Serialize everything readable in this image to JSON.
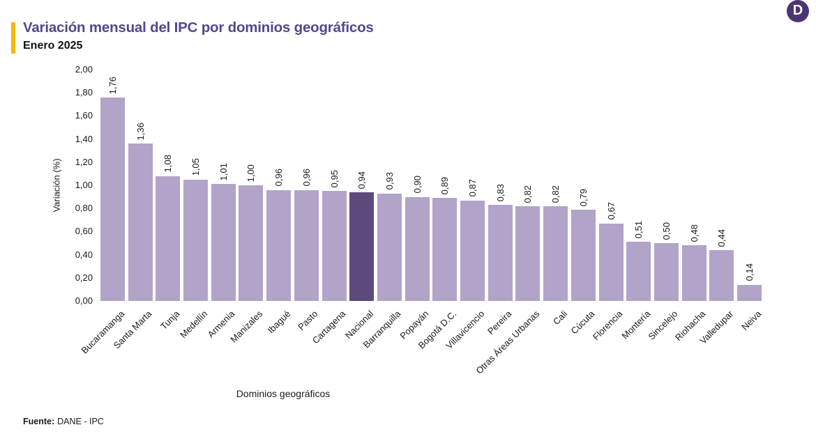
{
  "logo": {
    "letter": "D",
    "background": "#4d3573",
    "text_color": "#ffffff"
  },
  "header": {
    "title": "Variación mensual del IPC por dominios geográficos",
    "subtitle": "Enero 2025",
    "accent_color": "#f6b709",
    "title_color": "#57468b",
    "subtitle_color": "#111111"
  },
  "chart_data": {
    "type": "bar",
    "title": "Variación mensual del IPC por dominios geográficos",
    "subtitle": "Enero 2025",
    "xlabel": "Dominios geográficos",
    "ylabel": "Variación (%)",
    "ylim": [
      0,
      2.0
    ],
    "ytick_step": 0.2,
    "grid": false,
    "legend": false,
    "bar_color": "#b2a3c9",
    "highlight_color": "#5c4a7d",
    "highlight_category": "Nacional",
    "ytick_labels": [
      "2,00",
      "1,80",
      "1,60",
      "1,40",
      "1,20",
      "1,00",
      "0,80",
      "0,60",
      "0,40",
      "0,20",
      "0,00"
    ],
    "ytick_values": [
      2.0,
      1.8,
      1.6,
      1.4,
      1.2,
      1.0,
      0.8,
      0.6,
      0.4,
      0.2,
      0.0
    ],
    "categories": [
      "Bucaramanga",
      "Santa Marta",
      "Tunja",
      "Medellín",
      "Armenia",
      "Manizales",
      "Ibagué",
      "Pasto",
      "Cartagena",
      "Nacional",
      "Barranquilla",
      "Popayán",
      "Bogotá D.C.",
      "Villavicencio",
      "Pereira",
      "Otras Áreas Urbanas",
      "Cali",
      "Cúcuta",
      "Florencia",
      "Montería",
      "Sincelejo",
      "Riohacha",
      "Valledupar",
      "Neiva"
    ],
    "values": [
      1.76,
      1.36,
      1.08,
      1.05,
      1.01,
      1.0,
      0.96,
      0.96,
      0.95,
      0.94,
      0.93,
      0.9,
      0.89,
      0.87,
      0.83,
      0.82,
      0.82,
      0.79,
      0.67,
      0.51,
      0.5,
      0.48,
      0.44,
      0.14
    ],
    "value_labels": [
      "1,76",
      "1,36",
      "1,08",
      "1,05",
      "1,01",
      "1,00",
      "0,96",
      "0,96",
      "0,95",
      "0,94",
      "0,93",
      "0,90",
      "0,89",
      "0,87",
      "0,83",
      "0,82",
      "0,82",
      "0,79",
      "0,67",
      "0,51",
      "0,50",
      "0,48",
      "0,44",
      "0,14"
    ]
  },
  "footer": {
    "source_label": "Fuente:",
    "source_text": "DANE - IPC"
  }
}
